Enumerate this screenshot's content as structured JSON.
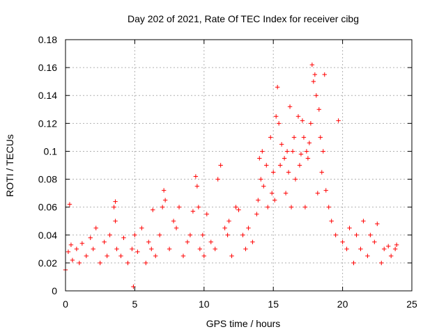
{
  "chart_data": {
    "type": "scatter",
    "title": "Day 202 of 2021, Rate Of TEC Index for receiver cibg",
    "xlabel": "GPS time / hours",
    "ylabel": "ROTI / TECUs",
    "xlim": [
      0,
      25
    ],
    "ylim": [
      0,
      0.18
    ],
    "xticks": [
      "0",
      "5",
      "10",
      "15",
      "20",
      "25"
    ],
    "yticks": [
      "0",
      "0.02",
      "0.04",
      "0.06",
      "0.08",
      "0.1",
      "0.12",
      "0.14",
      "0.16",
      "0.18"
    ],
    "grid": true,
    "marker": "+",
    "series_color": "#ff0000",
    "series": [
      {
        "x": [
          0.0,
          0.2,
          0.3,
          0.4,
          0.5,
          0.8,
          1.0,
          1.2,
          1.5,
          1.8,
          2.0,
          2.2,
          2.5,
          2.8,
          3.0,
          3.2,
          3.5,
          3.6,
          3.6,
          3.7,
          4.0,
          4.2,
          4.5,
          4.8,
          4.9,
          5.0,
          5.2,
          5.5,
          5.8,
          6.0,
          6.2,
          6.3,
          6.5,
          6.8,
          7.0,
          7.1,
          7.2,
          7.5,
          7.8,
          8.0,
          8.2,
          8.5,
          8.8,
          9.0,
          9.2,
          9.4,
          9.5,
          9.6,
          9.7,
          9.9,
          10.0,
          10.2,
          10.5,
          10.8,
          11.0,
          11.2,
          11.5,
          11.7,
          11.8,
          12.0,
          12.3,
          12.5,
          12.8,
          13.0,
          13.2,
          13.5,
          13.8,
          13.9,
          14.0,
          14.1,
          14.2,
          14.3,
          14.5,
          14.6,
          14.8,
          14.9,
          15.0,
          15.1,
          15.2,
          15.3,
          15.4,
          15.5,
          15.6,
          15.8,
          15.9,
          16.0,
          16.1,
          16.2,
          16.3,
          16.4,
          16.5,
          16.6,
          16.8,
          16.9,
          17.0,
          17.1,
          17.2,
          17.3,
          17.4,
          17.5,
          17.6,
          17.7,
          17.8,
          17.9,
          18.0,
          18.1,
          18.2,
          18.3,
          18.4,
          18.5,
          18.6,
          18.7,
          18.8,
          19.0,
          19.2,
          19.5,
          19.7,
          20.0,
          20.3,
          20.5,
          20.8,
          21.0,
          21.3,
          21.5,
          21.8,
          22.0,
          22.3,
          22.5,
          22.8,
          23.0,
          23.3,
          23.5,
          23.8,
          23.9
        ],
        "y": [
          0.015,
          0.028,
          0.062,
          0.033,
          0.022,
          0.03,
          0.02,
          0.034,
          0.025,
          0.038,
          0.03,
          0.045,
          0.02,
          0.035,
          0.025,
          0.04,
          0.06,
          0.064,
          0.05,
          0.03,
          0.025,
          0.038,
          0.02,
          0.03,
          0.003,
          0.04,
          0.028,
          0.045,
          0.02,
          0.035,
          0.03,
          0.058,
          0.025,
          0.04,
          0.06,
          0.072,
          0.065,
          0.03,
          0.05,
          0.045,
          0.06,
          0.025,
          0.035,
          0.04,
          0.057,
          0.082,
          0.075,
          0.06,
          0.03,
          0.04,
          0.025,
          0.055,
          0.035,
          0.03,
          0.08,
          0.09,
          0.045,
          0.04,
          0.05,
          0.025,
          0.06,
          0.058,
          0.04,
          0.03,
          0.045,
          0.035,
          0.055,
          0.065,
          0.095,
          0.08,
          0.1,
          0.075,
          0.09,
          0.06,
          0.11,
          0.07,
          0.085,
          0.065,
          0.125,
          0.146,
          0.12,
          0.09,
          0.105,
          0.095,
          0.07,
          0.1,
          0.085,
          0.132,
          0.06,
          0.1,
          0.11,
          0.08,
          0.125,
          0.09,
          0.098,
          0.122,
          0.11,
          0.06,
          0.1,
          0.095,
          0.106,
          0.12,
          0.162,
          0.15,
          0.155,
          0.14,
          0.07,
          0.13,
          0.11,
          0.085,
          0.1,
          0.155,
          0.072,
          0.06,
          0.05,
          0.04,
          0.122,
          0.035,
          0.03,
          0.045,
          0.02,
          0.04,
          0.03,
          0.05,
          0.025,
          0.04,
          0.035,
          0.048,
          0.02,
          0.03,
          0.032,
          0.025,
          0.03,
          0.033
        ]
      }
    ]
  }
}
